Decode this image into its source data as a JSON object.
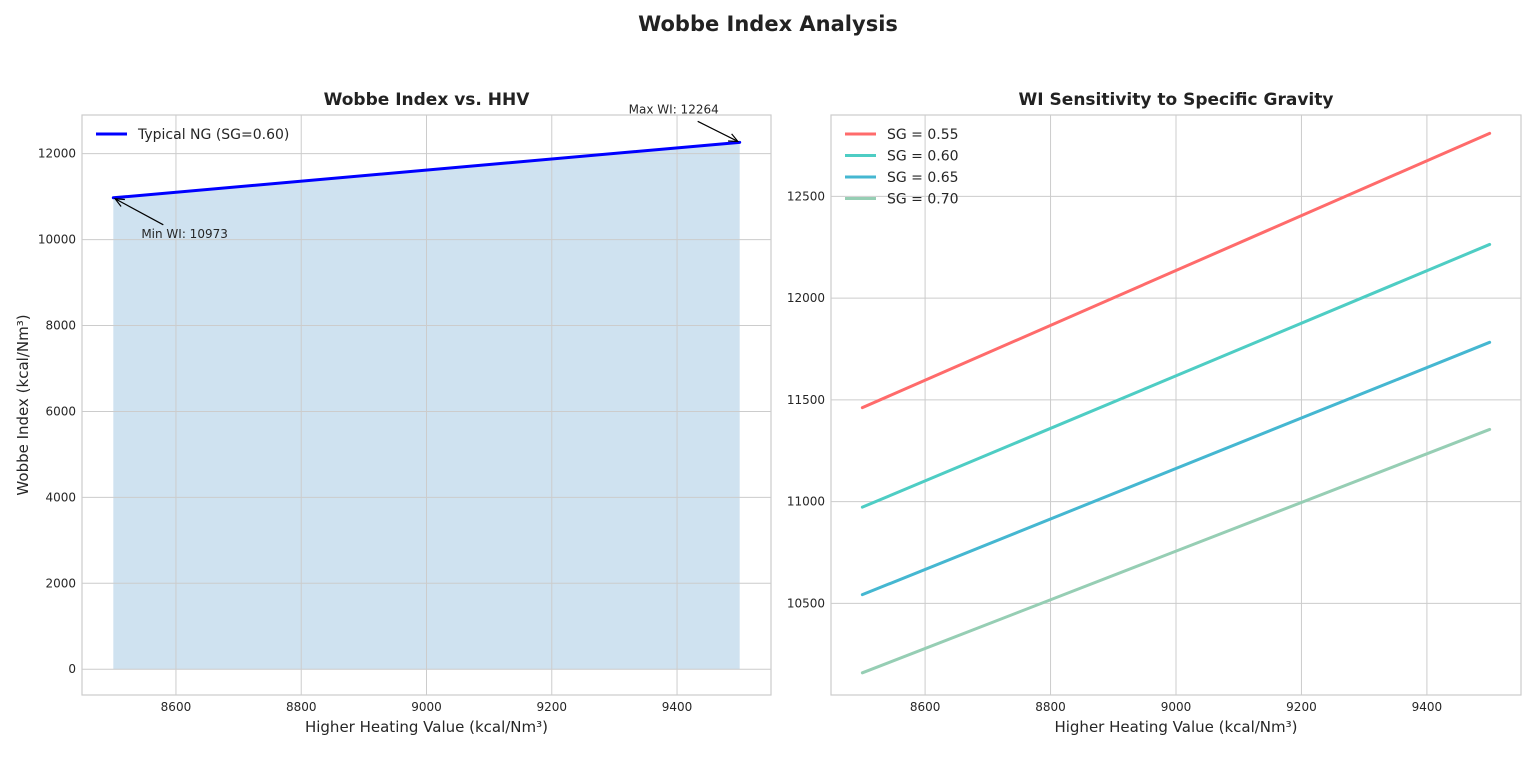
{
  "figure": {
    "title": "Wobbe Index Analysis"
  },
  "chart_data": [
    {
      "type": "line",
      "title": "Wobbe Index vs. HHV",
      "xlabel": "Higher Heating Value (kcal/Nm³)",
      "ylabel": "Wobbe Index (kcal/Nm³)",
      "xlim": [
        8450,
        9550
      ],
      "ylim": [
        -600,
        12900
      ],
      "xticks": [
        8600,
        8800,
        9000,
        9200,
        9400
      ],
      "yticks": [
        0,
        2000,
        4000,
        6000,
        8000,
        10000,
        12000
      ],
      "grid": true,
      "legend_position": "upper-left",
      "fill_under": {
        "color": "#cfe2f0",
        "from": 0
      },
      "series": [
        {
          "name": "Typical NG (SG=0.60)",
          "color": "#0000ff",
          "x": [
            8500,
            9500
          ],
          "y": [
            10973,
            12264
          ]
        }
      ],
      "annotations": [
        {
          "text": "Min WI: 10973",
          "x": 8500,
          "y": 10973,
          "placement": "below-right"
        },
        {
          "text": "Max WI: 12264",
          "x": 9500,
          "y": 12264,
          "placement": "above-left"
        }
      ]
    },
    {
      "type": "line",
      "title": "WI Sensitivity to Specific Gravity",
      "xlabel": "Higher Heating Value (kcal/Nm³)",
      "ylabel": "",
      "xlim": [
        8450,
        9550
      ],
      "ylim": [
        10050,
        12900
      ],
      "xticks": [
        8600,
        8800,
        9000,
        9200,
        9400
      ],
      "yticks": [
        10500,
        11000,
        11500,
        12000,
        12500
      ],
      "grid": true,
      "legend_position": "upper-left",
      "series": [
        {
          "name": "SG = 0.55",
          "color": "#ff6b6b",
          "x": [
            8500,
            9500
          ],
          "y": [
            11462,
            12810
          ]
        },
        {
          "name": "SG = 0.60",
          "color": "#4ecdc4",
          "x": [
            8500,
            9500
          ],
          "y": [
            10973,
            12264
          ]
        },
        {
          "name": "SG = 0.65",
          "color": "#45b7d1",
          "x": [
            8500,
            9500
          ],
          "y": [
            10543,
            11783
          ]
        },
        {
          "name": "SG = 0.70",
          "color": "#96ceb4",
          "x": [
            8500,
            9500
          ],
          "y": [
            10159,
            11355
          ]
        }
      ]
    }
  ]
}
